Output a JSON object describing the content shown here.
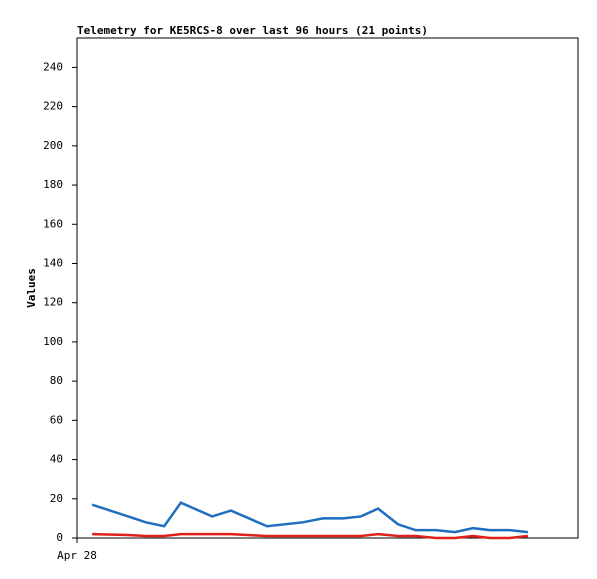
{
  "chart_data": {
    "type": "line",
    "title": "Telemetry for KE5RCS-8 over last 96 hours (21 points)",
    "y_label": "Values",
    "x": [
      2.9,
      9.8,
      13.2,
      16.7,
      19.9,
      25.9,
      29.5,
      36.4,
      43.3,
      47.1,
      51.0,
      54.4,
      57.7,
      61.5,
      64.9,
      68.8,
      72.4,
      75.9,
      79.1,
      82.9,
      86.4
    ],
    "xlim": [
      0,
      96
    ],
    "xticks": [
      {
        "value": 0,
        "label": "Apr 28"
      }
    ],
    "series": [
      {
        "color": "#1f6fc0",
        "values": [
          17,
          11,
          8,
          6,
          18,
          11,
          14,
          6,
          8,
          10,
          10,
          11,
          15,
          7,
          4,
          4,
          3,
          5,
          4,
          4,
          3
        ]
      },
      {
        "color": "#e0201b",
        "values": [
          2,
          1.5,
          1,
          1,
          2,
          2,
          2,
          1,
          1,
          1,
          1,
          1,
          2,
          1,
          1,
          0,
          0,
          1,
          0,
          0,
          1
        ]
      }
    ],
    "ylim": [
      0,
      255
    ],
    "yticks": [
      0,
      20,
      40,
      60,
      80,
      100,
      120,
      140,
      160,
      180,
      200,
      220,
      240
    ]
  }
}
